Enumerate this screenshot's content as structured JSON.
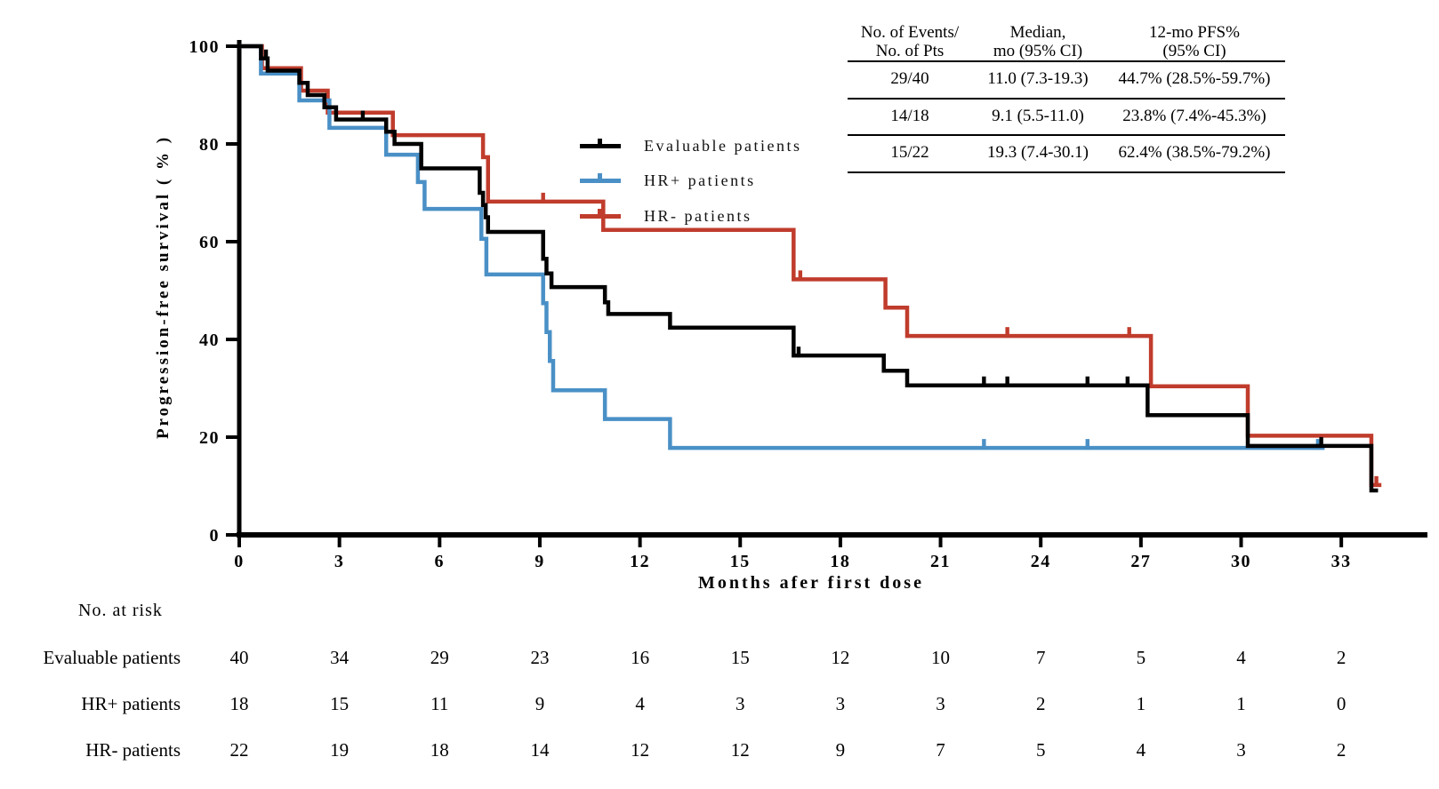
{
  "figure": {
    "y_axis_label": "Progression-free survival ( % )",
    "x_axis_label": "Months afer first dose"
  },
  "chart_data": {
    "type": "line",
    "subtype": "kaplan-meier-step-curve",
    "title": "",
    "xlabel": "Months afer first dose",
    "ylabel": "Progression-free survival ( % )",
    "x_ticks": [
      0,
      3,
      6,
      9,
      12,
      15,
      18,
      21,
      24,
      27,
      30,
      33
    ],
    "y_ticks": [
      0,
      20,
      40,
      60,
      80,
      100
    ],
    "xlim": [
      0,
      35.6
    ],
    "ylim": [
      0,
      100
    ],
    "grid": false,
    "legend_position": "top-center",
    "series": [
      {
        "name": "HR- patients",
        "color": "#C03C2C",
        "steps": [
          [
            0,
            100
          ],
          [
            0.68,
            95.5
          ],
          [
            1.85,
            90.9
          ],
          [
            2.65,
            86.4
          ],
          [
            4.6,
            81.8
          ],
          [
            7.3,
            77.3
          ],
          [
            7.45,
            68.2
          ],
          [
            10.9,
            62.4
          ],
          [
            16.6,
            52.3
          ],
          [
            19.35,
            46.5
          ],
          [
            20.0,
            40.7
          ],
          [
            27.3,
            30.4
          ],
          [
            30.2,
            20.3
          ],
          [
            33.9,
            10.2
          ]
        ],
        "end": 34.2,
        "censors": [
          [
            9.1,
            68.2
          ],
          [
            16.8,
            52.3
          ],
          [
            23.0,
            40.7
          ],
          [
            26.65,
            40.7
          ],
          [
            34.05,
            10.2
          ]
        ]
      },
      {
        "name": "HR+ patients",
        "color": "#4A90C6",
        "steps": [
          [
            0,
            100
          ],
          [
            0.65,
            94.4
          ],
          [
            1.8,
            88.9
          ],
          [
            2.7,
            83.3
          ],
          [
            4.4,
            77.8
          ],
          [
            5.35,
            72.2
          ],
          [
            5.55,
            66.7
          ],
          [
            7.25,
            60.6
          ],
          [
            7.4,
            53.3
          ],
          [
            9.1,
            47.4
          ],
          [
            9.2,
            41.5
          ],
          [
            9.3,
            35.6
          ],
          [
            9.4,
            29.6
          ],
          [
            10.95,
            23.7
          ],
          [
            12.9,
            17.8
          ]
        ],
        "end": 32.5,
        "censors": [
          [
            22.3,
            17.8
          ],
          [
            25.4,
            17.8
          ],
          [
            32.3,
            17.8
          ]
        ]
      },
      {
        "name": "Evaluable patients",
        "color": "#000000",
        "steps": [
          [
            0,
            100
          ],
          [
            0.65,
            97.5
          ],
          [
            0.85,
            95
          ],
          [
            1.8,
            92.5
          ],
          [
            2.05,
            90
          ],
          [
            2.55,
            87.5
          ],
          [
            2.9,
            85
          ],
          [
            4.4,
            82.5
          ],
          [
            4.65,
            80
          ],
          [
            5.45,
            75
          ],
          [
            7.2,
            70
          ],
          [
            7.3,
            67.5
          ],
          [
            7.38,
            65
          ],
          [
            7.45,
            62
          ],
          [
            9.1,
            56.5
          ],
          [
            9.2,
            53.5
          ],
          [
            9.35,
            50.7
          ],
          [
            10.95,
            47.6
          ],
          [
            11.05,
            45.2
          ],
          [
            12.9,
            42.4
          ],
          [
            16.6,
            36.7
          ],
          [
            19.3,
            33.6
          ],
          [
            20.0,
            30.6
          ],
          [
            27.2,
            24.5
          ],
          [
            30.2,
            18.2
          ],
          [
            33.9,
            9.1
          ]
        ],
        "end": 34.1,
        "censors": [
          [
            0.8,
            97.5
          ],
          [
            3.7,
            85
          ],
          [
            16.75,
            36.7
          ],
          [
            22.3,
            30.6
          ],
          [
            23.0,
            30.6
          ],
          [
            25.4,
            30.6
          ],
          [
            26.6,
            30.6
          ],
          [
            32.4,
            18.2
          ]
        ]
      }
    ]
  },
  "legend": {
    "items": [
      {
        "label": "Evaluable patients",
        "color": "#000000"
      },
      {
        "label": "HR+ patients",
        "color": "#4A90C6"
      },
      {
        "label": "HR- patients",
        "color": "#C03C2C"
      }
    ]
  },
  "stats_table": {
    "headers": {
      "col0_line1": "No. of Events/",
      "col0_line2": "No. of Pts",
      "col1_line1": "Median,",
      "col1_line2": "mo (95% CI)",
      "col2_line1": "12-mo PFS%",
      "col2_line2": "(95% CI)"
    },
    "rows": [
      {
        "label": "Evaluable patients",
        "events_pts": "29/40",
        "median": "11.0 (7.3-19.3)",
        "pfs12": "44.7% (28.5%-59.7%)"
      },
      {
        "label": "HR+ patients",
        "events_pts": "14/18",
        "median": "9.1 (5.5-11.0)",
        "pfs12": "23.8% (7.4%-45.3%)"
      },
      {
        "label": "HR- patients",
        "events_pts": "15/22",
        "median": "19.3 (7.4-30.1)",
        "pfs12": "62.4% (38.5%-79.2%)"
      }
    ]
  },
  "risk_table": {
    "title": "No. at risk",
    "months": [
      0,
      3,
      6,
      9,
      12,
      15,
      18,
      21,
      24,
      27,
      30,
      33
    ],
    "rows": [
      {
        "label": "Evaluable patients",
        "values": [
          40,
          34,
          29,
          23,
          16,
          15,
          12,
          10,
          7,
          5,
          4,
          2
        ]
      },
      {
        "label": "HR+ patients",
        "values": [
          18,
          15,
          11,
          9,
          4,
          3,
          3,
          3,
          2,
          1,
          1,
          0
        ]
      },
      {
        "label": "HR- patients",
        "values": [
          22,
          19,
          18,
          14,
          12,
          12,
          9,
          7,
          5,
          4,
          3,
          2
        ]
      }
    ]
  }
}
